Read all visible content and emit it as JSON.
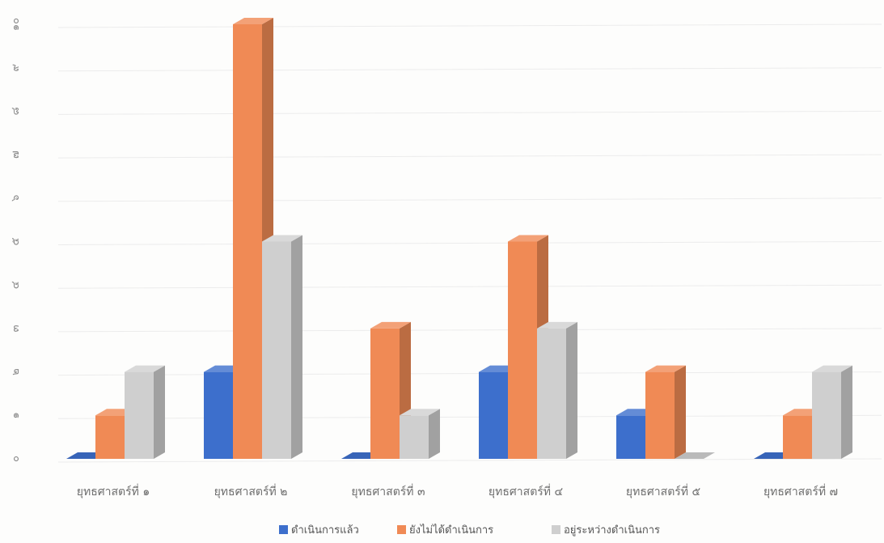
{
  "chart_data": {
    "type": "bar",
    "title": "",
    "xlabel": "",
    "ylabel": "",
    "ylim": [
      0,
      10
    ],
    "y_ticks": [
      "๐",
      "๑",
      "๒",
      "๓",
      "๔",
      "๕",
      "๖",
      "๗",
      "๘",
      "๙",
      "๑๐"
    ],
    "categories": [
      "ยุทธศาสตร์ที่ ๑",
      "ยุทธศาสตร์ที่ ๒",
      "ยุทธศาสตร์ที่ ๓",
      "ยุทธศาสตร์ที่ ๔",
      "ยุทธศาสตร์ที่ ๕",
      "ยุทธศาสตร์ที่ ๗"
    ],
    "series": [
      {
        "name": "ดำเนินการแล้ว",
        "color": "#3d6fcc",
        "values": [
          0,
          2,
          0,
          2,
          1,
          0
        ]
      },
      {
        "name": "ยังไม่ได้ดำเนินการ",
        "color": "#f08a55",
        "values": [
          1,
          10,
          3,
          5,
          2,
          1
        ]
      },
      {
        "name": "อยู่ระหว่างดำเนินการ",
        "color": "#cfcfcf",
        "values": [
          2,
          5,
          1,
          3,
          0,
          2
        ]
      }
    ],
    "grid": true,
    "legend_position": "bottom",
    "style": "3d-clustered-column"
  }
}
